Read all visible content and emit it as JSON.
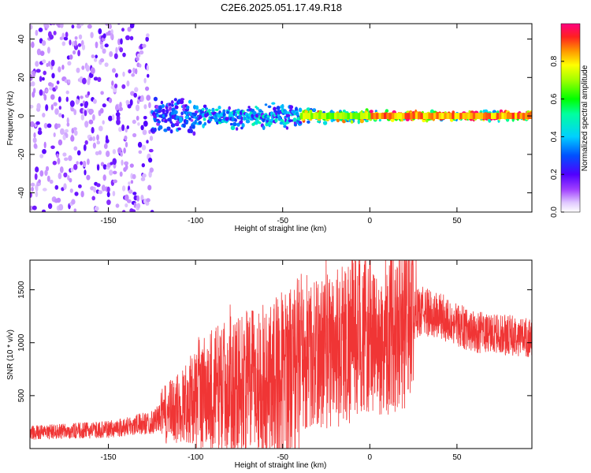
{
  "title": "C2E6.2025.051.17.49.R18",
  "colors": {
    "snr_line": "#f03535",
    "axis": "#000000"
  },
  "chart_data": [
    {
      "type": "heatmap",
      "xlabel": "Height of straight line (km)",
      "ylabel": "Frequency (Hz)",
      "xlim": [
        -195,
        93
      ],
      "ylim": [
        -50,
        48
      ],
      "x_ticks": [
        -150,
        -100,
        -50,
        0,
        50
      ],
      "y_ticks": [
        -40,
        -20,
        0,
        20,
        40
      ],
      "colorbar": {
        "label": "Normalized spectral amplitude",
        "range": [
          0,
          1
        ],
        "ticks": [
          0.0,
          0.2,
          0.4,
          0.6,
          0.8
        ],
        "tick_labels": [
          "0.0",
          "0.2",
          "0.4",
          "0.6",
          "0.8"
        ],
        "colormap": "rainbow"
      },
      "regions": [
        {
          "x_range": [
            -195,
            -125
          ],
          "freq_spread": 48,
          "amplitude": 0.12,
          "description_text": ""
        },
        {
          "x_range": [
            -125,
            -100
          ],
          "freq_spread": 12,
          "amplitude": 0.3
        },
        {
          "x_range": [
            -100,
            -40
          ],
          "freq_spread": 8,
          "amplitude": 0.4
        },
        {
          "x_range": [
            -40,
            0
          ],
          "freq_spread": 4,
          "amplitude": 0.7
        },
        {
          "x_range": [
            0,
            93
          ],
          "freq_spread": 3,
          "amplitude": 0.85
        }
      ]
    },
    {
      "type": "line",
      "xlabel": "Height of straight line (km)",
      "ylabel": "SNR (10 * v/v)",
      "xlim": [
        -195,
        93
      ],
      "ylim": [
        0,
        1780
      ],
      "x_ticks": [
        -150,
        -100,
        -50,
        0,
        50
      ],
      "y_ticks": [
        500,
        1000,
        1500
      ],
      "series": [
        {
          "envelope": {
            "x": [
              -195,
              -150,
              -125,
              -110,
              -100,
              -80,
              -60,
              -45,
              -30,
              -15,
              -5,
              5,
              10,
              20,
              30,
              40,
              60,
              93
            ],
            "y": [
              150,
              180,
              250,
              380,
              500,
              600,
              650,
              750,
              900,
              1000,
              1100,
              950,
              1050,
              1200,
              1300,
              1250,
              1100,
              1050
            ]
          }
        }
      ]
    }
  ]
}
